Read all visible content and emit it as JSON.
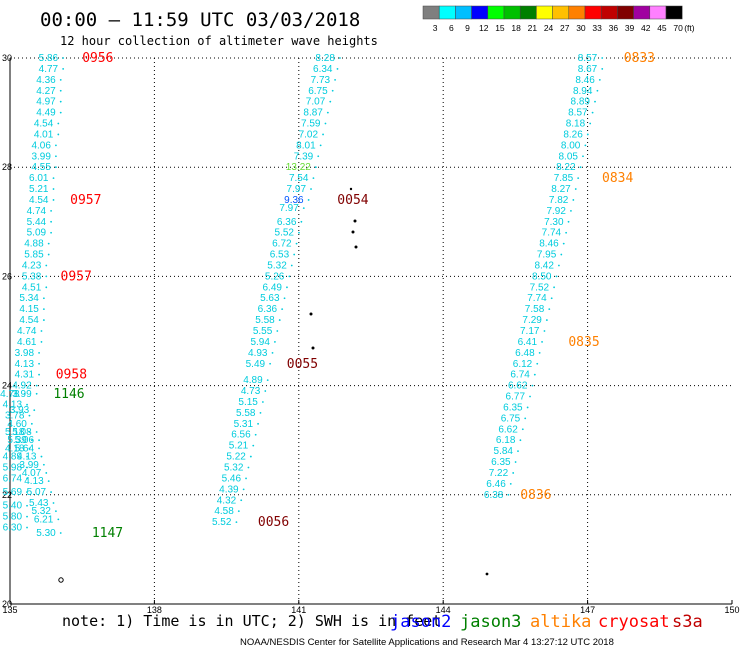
{
  "header": {
    "title": "00:00 – 11:59 UTC 03/03/2018",
    "subtitle": "12 hour collection of altimeter wave heights"
  },
  "colorbar": {
    "labels": [
      "3",
      "6",
      "9",
      "12",
      "15",
      "18",
      "21",
      "24",
      "27",
      "30",
      "33",
      "36",
      "39",
      "42",
      "45",
      "70"
    ],
    "unit": "(ft)",
    "colors": [
      "#7f7f7f",
      "#00ffff",
      "#00bfff",
      "#0000ff",
      "#00ff00",
      "#00c000",
      "#008000",
      "#ffff00",
      "#ffc000",
      "#ff8000",
      "#ff0000",
      "#c00000",
      "#800000",
      "#a000a0",
      "#ff80ff",
      "#000000"
    ]
  },
  "footer": {
    "note": "note: 1) Time is in UTC; 2) SWH is in feet",
    "credit": "NOAA/NESDIS Center for Satellite Applications and Research    Mar  4 13:27:12 UTC 2018",
    "legend": [
      {
        "name": "jason2",
        "color": "#0000ff"
      },
      {
        "name": "jason3",
        "color": "#008000"
      },
      {
        "name": "altika",
        "color": "#ff8000"
      },
      {
        "name": "cryosat",
        "color": "#ff0000"
      },
      {
        "name": "s3a",
        "color": "#c00000"
      }
    ]
  },
  "chart_data": {
    "type": "scatter",
    "title": "00:00 – 11:59 UTC 03/03/2018",
    "subtitle": "12 hour collection of altimeter wave heights",
    "xlim": [
      135,
      150
    ],
    "ylim": [
      20,
      30
    ],
    "x_ticks": [
      "135",
      "138",
      "141",
      "144",
      "147",
      "150"
    ],
    "y_ticks": [
      "20",
      "22",
      "24",
      "26",
      "28",
      "30"
    ],
    "grid": true,
    "legend_placement": "bottom",
    "tracks": [
      {
        "satellite": "cryosat",
        "color": "#00ccdd",
        "label_color": "#ff0000",
        "points": [
          {
            "lon": 136.0,
            "lat": 30.0,
            "v": "5.86"
          },
          {
            "lon": 136.0,
            "lat": 29.8,
            "v": "4.77"
          },
          {
            "lon": 135.95,
            "lat": 29.6,
            "v": "4.36"
          },
          {
            "lon": 135.95,
            "lat": 29.4,
            "v": "4.27"
          },
          {
            "lon": 135.95,
            "lat": 29.2,
            "v": "4.97"
          },
          {
            "lon": 135.95,
            "lat": 29.0,
            "v": "4.49"
          },
          {
            "lon": 135.9,
            "lat": 28.8,
            "v": "4.54"
          },
          {
            "lon": 135.9,
            "lat": 28.6,
            "v": "4.01"
          },
          {
            "lon": 135.85,
            "lat": 28.4,
            "v": "4.06"
          },
          {
            "lon": 135.85,
            "lat": 28.2,
            "v": "3.99"
          },
          {
            "lon": 135.85,
            "lat": 28.0,
            "v": "4.55"
          },
          {
            "lon": 135.8,
            "lat": 27.8,
            "v": "6.01"
          },
          {
            "lon": 135.8,
            "lat": 27.6,
            "v": "5.21"
          },
          {
            "lon": 135.8,
            "lat": 27.4,
            "v": "4.54"
          },
          {
            "lon": 135.75,
            "lat": 27.2,
            "v": "4.74"
          },
          {
            "lon": 135.75,
            "lat": 27.0,
            "v": "5.44"
          },
          {
            "lon": 135.75,
            "lat": 26.8,
            "v": "5.09"
          },
          {
            "lon": 135.7,
            "lat": 26.6,
            "v": "4.88"
          },
          {
            "lon": 135.7,
            "lat": 26.4,
            "v": "5.85"
          },
          {
            "lon": 135.65,
            "lat": 26.2,
            "v": "4.23"
          },
          {
            "lon": 135.65,
            "lat": 26.0,
            "v": "5.38"
          },
          {
            "lon": 135.65,
            "lat": 25.8,
            "v": "4.51"
          },
          {
            "lon": 135.6,
            "lat": 25.6,
            "v": "5.34"
          },
          {
            "lon": 135.6,
            "lat": 25.4,
            "v": "4.15"
          },
          {
            "lon": 135.6,
            "lat": 25.2,
            "v": "4.54"
          },
          {
            "lon": 135.55,
            "lat": 25.0,
            "v": "4.74"
          },
          {
            "lon": 135.55,
            "lat": 24.8,
            "v": "4.61"
          },
          {
            "lon": 135.5,
            "lat": 24.6,
            "v": "3.98"
          },
          {
            "lon": 135.5,
            "lat": 24.4,
            "v": "4.13"
          },
          {
            "lon": 135.5,
            "lat": 24.2,
            "v": "4.31"
          },
          {
            "lon": 135.45,
            "lat": 24.0,
            "v": "4.92"
          }
        ],
        "time_labels": [
          {
            "lon": 136.5,
            "lat": 30.0,
            "v": "0956"
          },
          {
            "lon": 136.25,
            "lat": 27.4,
            "v": "0957"
          },
          {
            "lon": 136.05,
            "lat": 26.0,
            "v": "0957"
          },
          {
            "lon": 135.95,
            "lat": 24.2,
            "v": "0958"
          }
        ]
      },
      {
        "satellite": "jason3",
        "color": "#00ccdd",
        "label_color": "#008000",
        "points": [
          {
            "lon": 135.2,
            "lat": 23.85,
            "v": "4.78"
          },
          {
            "lon": 135.45,
            "lat": 23.85,
            "v": "3.99"
          },
          {
            "lon": 135.25,
            "lat": 23.65,
            "v": "4.13"
          },
          {
            "lon": 135.4,
            "lat": 23.55,
            "v": "3.93"
          },
          {
            "lon": 135.3,
            "lat": 23.45,
            "v": "3.78"
          },
          {
            "lon": 135.35,
            "lat": 23.3,
            "v": "4.60"
          },
          {
            "lon": 135.3,
            "lat": 23.15,
            "v": "5.18"
          },
          {
            "lon": 135.45,
            "lat": 23.15,
            "v": "5.08"
          },
          {
            "lon": 135.35,
            "lat": 23.0,
            "v": "5.39"
          },
          {
            "lon": 135.5,
            "lat": 23.0,
            "v": "5.06"
          },
          {
            "lon": 135.3,
            "lat": 22.85,
            "v": "4.18"
          },
          {
            "lon": 135.5,
            "lat": 22.85,
            "v": "5.64"
          },
          {
            "lon": 135.55,
            "lat": 22.7,
            "v": "4.13"
          },
          {
            "lon": 135.25,
            "lat": 22.7,
            "v": "4.89"
          },
          {
            "lon": 135.6,
            "lat": 22.55,
            "v": "3.99"
          },
          {
            "lon": 135.25,
            "lat": 22.5,
            "v": "5.98"
          },
          {
            "lon": 135.65,
            "lat": 22.4,
            "v": "4.07"
          },
          {
            "lon": 135.25,
            "lat": 22.3,
            "v": "6.74"
          },
          {
            "lon": 135.7,
            "lat": 22.25,
            "v": "4.13"
          },
          {
            "lon": 135.25,
            "lat": 22.05,
            "v": "5.69"
          },
          {
            "lon": 135.75,
            "lat": 22.05,
            "v": "5.07"
          },
          {
            "lon": 135.8,
            "lat": 21.85,
            "v": "5.43"
          },
          {
            "lon": 135.25,
            "lat": 21.8,
            "v": "5.40"
          },
          {
            "lon": 135.85,
            "lat": 21.7,
            "v": "5.32"
          },
          {
            "lon": 135.25,
            "lat": 21.6,
            "v": "5.80"
          },
          {
            "lon": 135.9,
            "lat": 21.55,
            "v": "6.21"
          },
          {
            "lon": 135.25,
            "lat": 21.4,
            "v": "6.30"
          },
          {
            "lon": 135.95,
            "lat": 21.3,
            "v": "5.30"
          }
        ],
        "time_labels": [
          {
            "lon": 135.9,
            "lat": 23.85,
            "v": "1146"
          },
          {
            "lon": 136.7,
            "lat": 21.3,
            "v": "1147"
          }
        ]
      },
      {
        "satellite": "s3a",
        "color": "#00ccdd",
        "label_color": "#800000",
        "points": [
          {
            "lon": 141.75,
            "lat": 30.0,
            "v": "8.28"
          },
          {
            "lon": 141.7,
            "lat": 29.8,
            "v": "6.34"
          },
          {
            "lon": 141.65,
            "lat": 29.6,
            "v": "7.73"
          },
          {
            "lon": 141.6,
            "lat": 29.4,
            "v": "6.75"
          },
          {
            "lon": 141.55,
            "lat": 29.2,
            "v": "7.07"
          },
          {
            "lon": 141.5,
            "lat": 29.0,
            "v": "8.87"
          },
          {
            "lon": 141.45,
            "lat": 28.8,
            "v": "7.59"
          },
          {
            "lon": 141.4,
            "lat": 28.6,
            "v": "7.02"
          },
          {
            "lon": 141.35,
            "lat": 28.4,
            "v": "8.01"
          },
          {
            "lon": 141.3,
            "lat": 28.2,
            "v": "7.39"
          },
          {
            "lon": 141.25,
            "lat": 28.0,
            "v": "13.22"
          },
          {
            "lon": 141.2,
            "lat": 27.8,
            "v": "7.54"
          },
          {
            "lon": 141.15,
            "lat": 27.6,
            "v": "7.97"
          },
          {
            "lon": 141.1,
            "lat": 27.4,
            "v": "9.36"
          },
          {
            "lon": 141.0,
            "lat": 27.25,
            "v": "7.97"
          },
          {
            "lon": 140.95,
            "lat": 27.0,
            "v": "6.36"
          },
          {
            "lon": 140.9,
            "lat": 26.8,
            "v": "5.52"
          },
          {
            "lon": 140.85,
            "lat": 26.6,
            "v": "6.72"
          },
          {
            "lon": 140.8,
            "lat": 26.4,
            "v": "6.53"
          },
          {
            "lon": 140.75,
            "lat": 26.2,
            "v": "5.32"
          },
          {
            "lon": 140.7,
            "lat": 26.0,
            "v": "5.26"
          },
          {
            "lon": 140.65,
            "lat": 25.8,
            "v": "6.49"
          },
          {
            "lon": 140.6,
            "lat": 25.6,
            "v": "5.63"
          },
          {
            "lon": 140.55,
            "lat": 25.4,
            "v": "6.36"
          },
          {
            "lon": 140.5,
            "lat": 25.2,
            "v": "5.58"
          },
          {
            "lon": 140.45,
            "lat": 25.0,
            "v": "5.55"
          },
          {
            "lon": 140.4,
            "lat": 24.8,
            "v": "5.94"
          },
          {
            "lon": 140.35,
            "lat": 24.6,
            "v": "4.93"
          },
          {
            "lon": 140.3,
            "lat": 24.4,
            "v": "5.49"
          }
        ],
        "time_labels": [
          {
            "lon": 141.8,
            "lat": 27.4,
            "v": "0054"
          },
          {
            "lon": 140.75,
            "lat": 24.4,
            "v": "0055"
          }
        ]
      },
      {
        "satellite": "s3a",
        "color": "#00ccdd",
        "label_color": "#800000",
        "points": [
          {
            "lon": 140.25,
            "lat": 24.1,
            "v": "4.89"
          },
          {
            "lon": 140.2,
            "lat": 23.9,
            "v": "4.73"
          },
          {
            "lon": 140.15,
            "lat": 23.7,
            "v": "5.15"
          },
          {
            "lon": 140.1,
            "lat": 23.5,
            "v": "5.58"
          },
          {
            "lon": 140.05,
            "lat": 23.3,
            "v": "5.31"
          },
          {
            "lon": 140.0,
            "lat": 23.1,
            "v": "6.56"
          },
          {
            "lon": 139.95,
            "lat": 22.9,
            "v": "5.21"
          },
          {
            "lon": 139.9,
            "lat": 22.7,
            "v": "5.22"
          },
          {
            "lon": 139.85,
            "lat": 22.5,
            "v": "5.32"
          },
          {
            "lon": 139.8,
            "lat": 22.3,
            "v": "5.46"
          },
          {
            "lon": 139.75,
            "lat": 22.1,
            "v": "4.39"
          },
          {
            "lon": 139.7,
            "lat": 21.9,
            "v": "4.32"
          },
          {
            "lon": 139.65,
            "lat": 21.7,
            "v": "4.58"
          },
          {
            "lon": 139.6,
            "lat": 21.5,
            "v": "5.52"
          }
        ],
        "time_labels": [
          {
            "lon": 140.15,
            "lat": 21.5,
            "v": "0056"
          }
        ]
      },
      {
        "satellite": "altika",
        "color": "#00ccdd",
        "label_color": "#ff8000",
        "points": [
          {
            "lon": 147.2,
            "lat": 30.0,
            "v": "8.57"
          },
          {
            "lon": 147.2,
            "lat": 29.8,
            "v": "8.67"
          },
          {
            "lon": 147.15,
            "lat": 29.6,
            "v": "8.46"
          },
          {
            "lon": 147.1,
            "lat": 29.4,
            "v": "8.94"
          },
          {
            "lon": 147.05,
            "lat": 29.2,
            "v": "8.89"
          },
          {
            "lon": 147.0,
            "lat": 29.0,
            "v": "8.57"
          },
          {
            "lon": 146.95,
            "lat": 28.8,
            "v": "8.18"
          },
          {
            "lon": 146.9,
            "lat": 28.6,
            "v": "8.26"
          },
          {
            "lon": 146.85,
            "lat": 28.4,
            "v": "8.00"
          },
          {
            "lon": 146.8,
            "lat": 28.2,
            "v": "8.05"
          },
          {
            "lon": 146.75,
            "lat": 28.0,
            "v": "8.22"
          },
          {
            "lon": 146.7,
            "lat": 27.8,
            "v": "7.85"
          },
          {
            "lon": 146.65,
            "lat": 27.6,
            "v": "8.27"
          },
          {
            "lon": 146.6,
            "lat": 27.4,
            "v": "7.82"
          },
          {
            "lon": 146.55,
            "lat": 27.2,
            "v": "7.92"
          },
          {
            "lon": 146.5,
            "lat": 27.0,
            "v": "7.30"
          },
          {
            "lon": 146.45,
            "lat": 26.8,
            "v": "7.74"
          },
          {
            "lon": 146.4,
            "lat": 26.6,
            "v": "8.46"
          },
          {
            "lon": 146.35,
            "lat": 26.4,
            "v": "7.95"
          },
          {
            "lon": 146.3,
            "lat": 26.2,
            "v": "8.42"
          },
          {
            "lon": 146.25,
            "lat": 26.0,
            "v": "8.50"
          },
          {
            "lon": 146.2,
            "lat": 25.8,
            "v": "7.52"
          },
          {
            "lon": 146.15,
            "lat": 25.6,
            "v": "7.74"
          },
          {
            "lon": 146.1,
            "lat": 25.4,
            "v": "7.58"
          },
          {
            "lon": 146.05,
            "lat": 25.2,
            "v": "7.29"
          },
          {
            "lon": 146.0,
            "lat": 25.0,
            "v": "7.17"
          }
        ],
        "time_labels": [
          {
            "lon": 147.75,
            "lat": 30.0,
            "v": "0833"
          },
          {
            "lon": 147.3,
            "lat": 27.8,
            "v": "0834"
          }
        ]
      },
      {
        "satellite": "altika",
        "color": "#00ccdd",
        "label_color": "#ff8000",
        "points": [
          {
            "lon": 145.95,
            "lat": 24.8,
            "v": "6.41"
          },
          {
            "lon": 145.9,
            "lat": 24.6,
            "v": "6.48"
          },
          {
            "lon": 145.85,
            "lat": 24.4,
            "v": "6.12"
          },
          {
            "lon": 145.8,
            "lat": 24.2,
            "v": "6.74"
          },
          {
            "lon": 145.75,
            "lat": 24.0,
            "v": "6.62"
          },
          {
            "lon": 145.7,
            "lat": 23.8,
            "v": "6.77"
          },
          {
            "lon": 145.65,
            "lat": 23.6,
            "v": "6.35"
          },
          {
            "lon": 145.6,
            "lat": 23.4,
            "v": "6.75"
          },
          {
            "lon": 145.55,
            "lat": 23.2,
            "v": "6.62"
          },
          {
            "lon": 145.5,
            "lat": 23.0,
            "v": "6.18"
          },
          {
            "lon": 145.45,
            "lat": 22.8,
            "v": "5.84"
          },
          {
            "lon": 145.4,
            "lat": 22.6,
            "v": "6.35"
          },
          {
            "lon": 145.35,
            "lat": 22.4,
            "v": "7.22"
          },
          {
            "lon": 145.3,
            "lat": 22.2,
            "v": "6.46"
          },
          {
            "lon": 145.25,
            "lat": 22.0,
            "v": "6.38"
          }
        ],
        "time_labels": [
          {
            "lon": 146.6,
            "lat": 24.8,
            "v": "0835"
          },
          {
            "lon": 145.6,
            "lat": 22.0,
            "v": "0836"
          }
        ]
      }
    ]
  }
}
